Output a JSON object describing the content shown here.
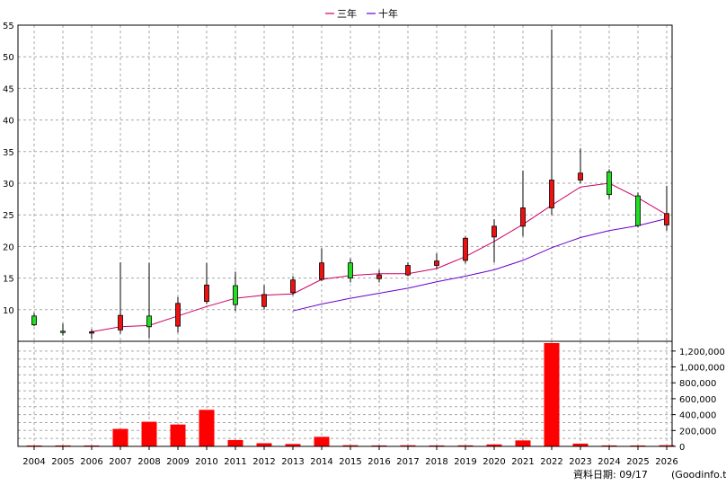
{
  "legend": {
    "items": [
      {
        "label": "三年",
        "color": "#cc0066"
      },
      {
        "label": "十年",
        "color": "#6600cc"
      }
    ]
  },
  "footer": {
    "data_date_label": "資料日期: 09/17",
    "source": "(Goodinfo.tw)"
  },
  "colors": {
    "up_candle": "#ee1111",
    "down_candle": "#22dd22",
    "volume_bar": "#ff0000",
    "grid": "#a8a8a8"
  },
  "chart_data": [
    {
      "type": "candlestick",
      "title": "",
      "categories": [
        "2004",
        "2005",
        "2006",
        "2007",
        "2008",
        "2009",
        "2010",
        "2011",
        "2012",
        "2013",
        "2014",
        "2015",
        "2016",
        "2017",
        "2018",
        "2019",
        "2020",
        "2021",
        "2022",
        "2023",
        "2024",
        "2025",
        "2026"
      ],
      "ylim": [
        5,
        55
      ],
      "y_ticks": [
        10,
        15,
        20,
        25,
        30,
        35,
        40,
        45,
        50,
        55
      ],
      "grid": true,
      "candles": [
        {
          "year": "2004",
          "open": 9.0,
          "close": 7.6,
          "high": 9.5,
          "low": 7.4
        },
        {
          "year": "2005",
          "open": 6.6,
          "close": 6.5,
          "high": 7.8,
          "low": 5.9
        },
        {
          "year": "2006",
          "open": 6.5,
          "close": 6.5,
          "high": 6.9,
          "low": 5.4
        },
        {
          "year": "2007",
          "open": 6.8,
          "close": 9.1,
          "high": 17.5,
          "low": 6.2
        },
        {
          "year": "2008",
          "open": 9.0,
          "close": 7.3,
          "high": 17.4,
          "low": 5.5
        },
        {
          "year": "2009",
          "open": 7.4,
          "close": 11.0,
          "high": 12.0,
          "low": 6.4
        },
        {
          "year": "2010",
          "open": 11.3,
          "close": 13.9,
          "high": 17.4,
          "low": 10.9
        },
        {
          "year": "2011",
          "open": 13.8,
          "close": 10.8,
          "high": 16.0,
          "low": 9.8
        },
        {
          "year": "2012",
          "open": 10.5,
          "close": 12.4,
          "high": 13.9,
          "low": 10.0
        },
        {
          "year": "2013",
          "open": 12.7,
          "close": 14.7,
          "high": 15.3,
          "low": 12.3
        },
        {
          "year": "2014",
          "open": 14.8,
          "close": 17.4,
          "high": 19.7,
          "low": 14.5
        },
        {
          "year": "2015",
          "open": 17.4,
          "close": 15.0,
          "high": 18.1,
          "low": 14.3
        },
        {
          "year": "2016",
          "open": 14.9,
          "close": 15.5,
          "high": 16.3,
          "low": 14.3
        },
        {
          "year": "2017",
          "open": 15.5,
          "close": 17.0,
          "high": 17.5,
          "low": 15.3
        },
        {
          "year": "2018",
          "open": 17.0,
          "close": 17.7,
          "high": 18.9,
          "low": 16.5
        },
        {
          "year": "2019",
          "open": 17.8,
          "close": 21.3,
          "high": 21.6,
          "low": 17.3
        },
        {
          "year": "2020",
          "open": 21.5,
          "close": 23.2,
          "high": 24.3,
          "low": 17.5
        },
        {
          "year": "2021",
          "open": 23.2,
          "close": 26.1,
          "high": 32.0,
          "low": 21.6
        },
        {
          "year": "2022",
          "open": 26.1,
          "close": 30.5,
          "high": 54.3,
          "low": 25.0
        },
        {
          "year": "2023",
          "open": 30.5,
          "close": 31.6,
          "high": 35.5,
          "low": 30.0
        },
        {
          "year": "2024",
          "open": 31.8,
          "close": 28.2,
          "high": 32.2,
          "low": 27.5
        },
        {
          "year": "2025",
          "open": 28.0,
          "close": 23.3,
          "high": 28.5,
          "low": 23.0
        },
        {
          "year": "2026",
          "open": 23.4,
          "close": 25.2,
          "high": 29.6,
          "low": 22.5
        }
      ],
      "series": [
        {
          "name": "三年",
          "color": "#cc0066",
          "x": [
            "2006",
            "2007",
            "2008",
            "2009",
            "2010",
            "2011",
            "2012",
            "2013",
            "2014",
            "2015",
            "2016",
            "2017",
            "2018",
            "2019",
            "2020",
            "2021",
            "2022",
            "2023",
            "2024",
            "2025",
            "2026"
          ],
          "values": [
            6.5,
            7.3,
            7.5,
            9.0,
            10.5,
            11.8,
            12.3,
            12.5,
            14.8,
            15.4,
            15.7,
            15.7,
            16.5,
            18.4,
            20.8,
            23.5,
            26.5,
            29.4,
            30.0,
            27.7,
            25.0
          ]
        },
        {
          "name": "十年",
          "color": "#6600cc",
          "x": [
            "2013",
            "2014",
            "2015",
            "2016",
            "2017",
            "2018",
            "2019",
            "2020",
            "2021",
            "2022",
            "2023",
            "2024",
            "2025",
            "2026"
          ],
          "values": [
            9.8,
            10.9,
            11.8,
            12.6,
            13.4,
            14.4,
            15.3,
            16.3,
            17.8,
            19.8,
            21.4,
            22.5,
            23.3,
            24.4
          ]
        }
      ]
    },
    {
      "type": "bar",
      "title": "",
      "categories": [
        "2004",
        "2005",
        "2006",
        "2007",
        "2008",
        "2009",
        "2010",
        "2011",
        "2012",
        "2013",
        "2014",
        "2015",
        "2016",
        "2017",
        "2018",
        "2019",
        "2020",
        "2021",
        "2022",
        "2023",
        "2024",
        "2025",
        "2026"
      ],
      "values": [
        5000,
        12000,
        6000,
        220000,
        310000,
        275000,
        460000,
        80000,
        40000,
        30000,
        120000,
        15000,
        12000,
        14000,
        12000,
        13000,
        25000,
        75000,
        1300000,
        35000,
        12000,
        8000,
        15000
      ],
      "ylim": [
        0,
        1300000
      ],
      "y_ticks": [
        0,
        200000,
        400000,
        600000,
        800000,
        1000000,
        1200000
      ],
      "y_tick_labels": [
        "0",
        "200,000",
        "400,000",
        "600,000",
        "800,000",
        "1,000,000",
        "1,200,000"
      ],
      "grid": true
    }
  ]
}
